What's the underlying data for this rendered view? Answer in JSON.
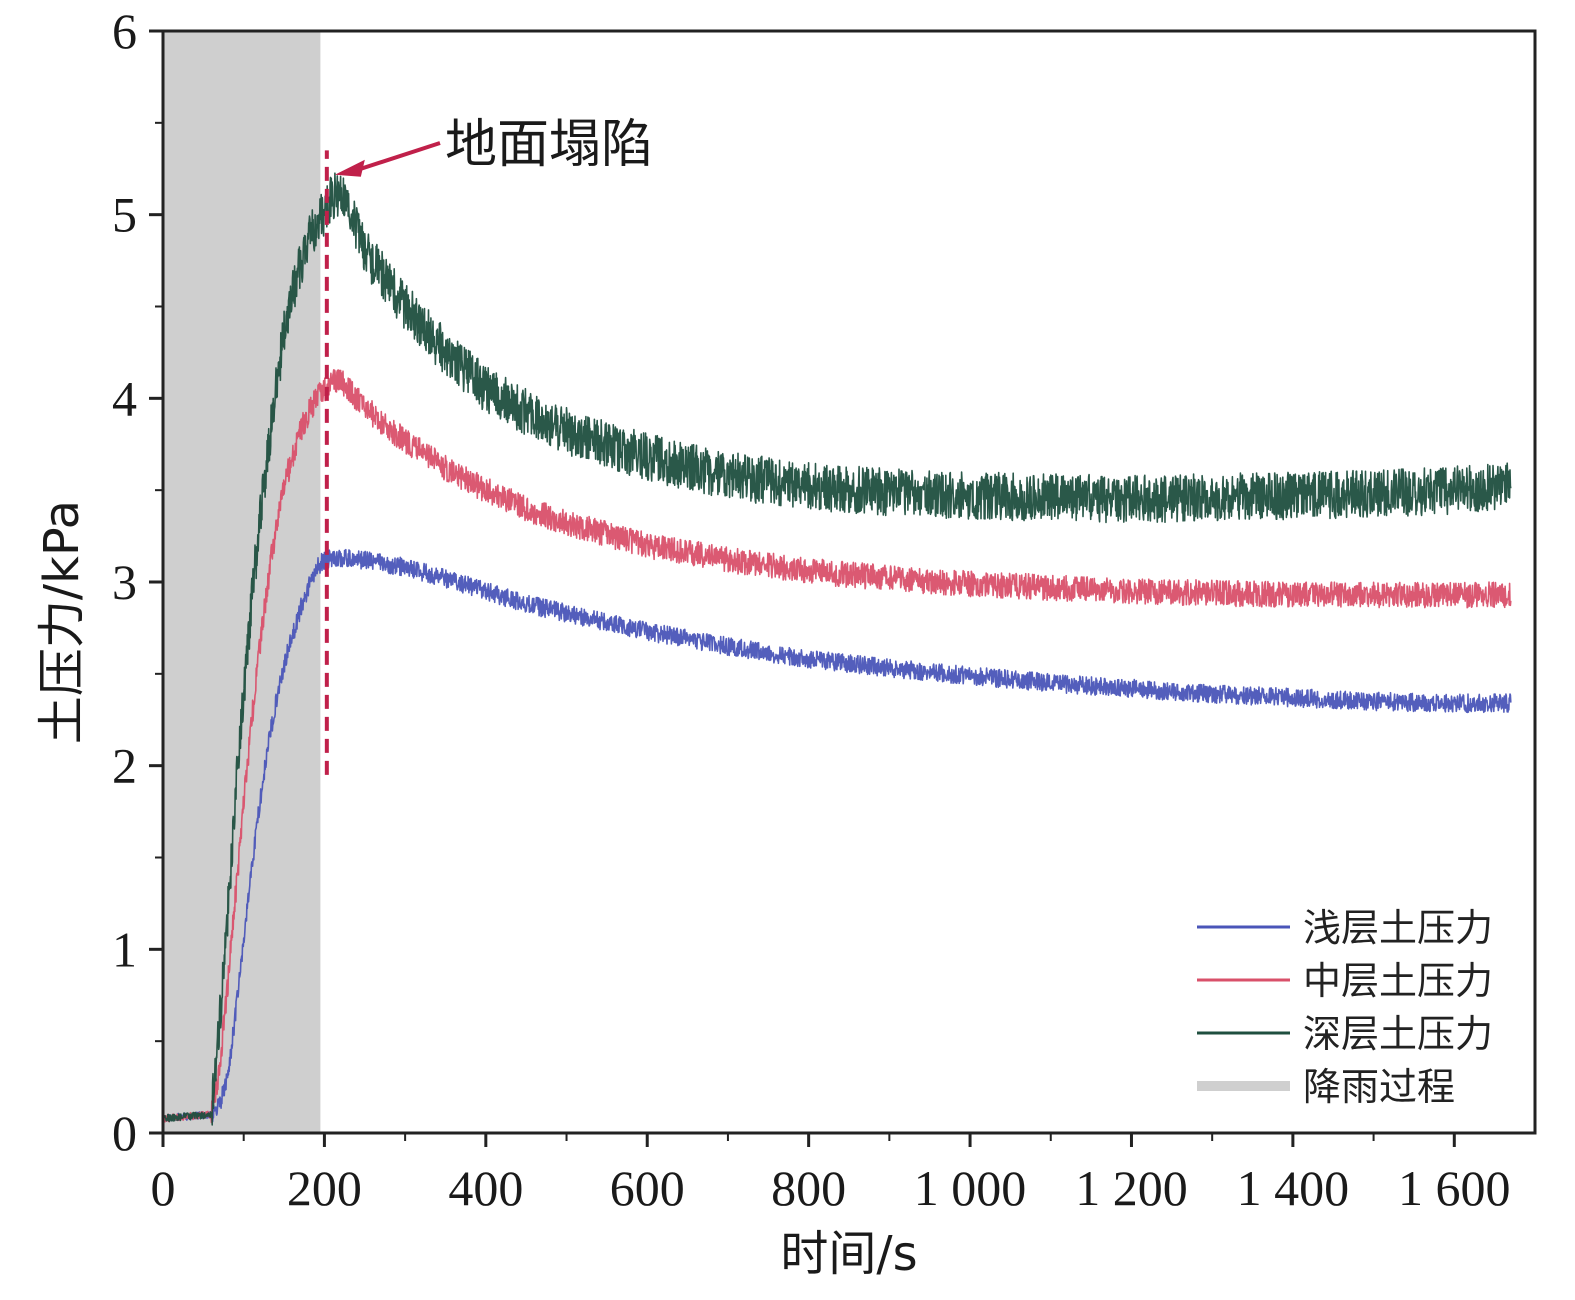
{
  "chart_data": {
    "type": "line",
    "xlabel": "时间/s",
    "ylabel": "土压力/kPa",
    "xlim": [
      0,
      1700
    ],
    "ylim": [
      0,
      6
    ],
    "x_ticks": [
      0,
      200,
      400,
      600,
      800,
      1000,
      1200,
      1400,
      1600
    ],
    "x_tick_labels": [
      "0",
      "200",
      "400",
      "600",
      "800",
      "1 000",
      "1 200",
      "1 400",
      "1 600"
    ],
    "y_ticks": [
      0,
      1,
      2,
      3,
      4,
      5,
      6
    ],
    "y_tick_labels": [
      "0",
      "1",
      "2",
      "3",
      "4",
      "5",
      "6"
    ],
    "grid": false,
    "legend_position": "bottom-right",
    "rain_period": {
      "name": "降雨过程",
      "x_start": 0,
      "x_end": 195,
      "color": "#cfcfcf"
    },
    "collapse_marker": {
      "label": "地面塌陷",
      "x": 203,
      "y_from": 1.95,
      "y_to": 5.35,
      "arrow_target_y": 5.25,
      "color": "#c0204a"
    },
    "series": [
      {
        "name": "浅层土压力",
        "color": "#4a55b8",
        "noise": 0.05,
        "x": [
          0,
          60,
          70,
          80,
          90,
          100,
          110,
          120,
          130,
          140,
          150,
          160,
          170,
          180,
          190,
          195,
          200,
          220,
          250,
          300,
          350,
          400,
          450,
          500,
          600,
          700,
          800,
          900,
          1000,
          1100,
          1200,
          1300,
          1400,
          1500,
          1600,
          1670
        ],
        "values": [
          0.08,
          0.1,
          0.15,
          0.3,
          0.65,
          1.05,
          1.45,
          1.8,
          2.1,
          2.35,
          2.55,
          2.7,
          2.85,
          2.97,
          3.07,
          3.1,
          3.12,
          3.13,
          3.12,
          3.08,
          3.02,
          2.95,
          2.88,
          2.83,
          2.73,
          2.65,
          2.58,
          2.53,
          2.49,
          2.45,
          2.42,
          2.39,
          2.37,
          2.35,
          2.34,
          2.34
        ]
      },
      {
        "name": "中层土压力",
        "color": "#d9506a",
        "noise": 0.07,
        "x": [
          0,
          60,
          70,
          80,
          90,
          100,
          110,
          120,
          130,
          140,
          150,
          160,
          170,
          180,
          190,
          200,
          210,
          220,
          240,
          270,
          300,
          350,
          400,
          450,
          500,
          600,
          700,
          800,
          900,
          1000,
          1100,
          1200,
          1300,
          1400,
          1500,
          1600,
          1670
        ],
        "values": [
          0.08,
          0.1,
          0.35,
          0.8,
          1.3,
          1.8,
          2.25,
          2.65,
          3.0,
          3.3,
          3.52,
          3.68,
          3.82,
          3.92,
          4.0,
          4.05,
          4.09,
          4.1,
          4.0,
          3.87,
          3.77,
          3.62,
          3.5,
          3.4,
          3.32,
          3.2,
          3.12,
          3.06,
          3.02,
          2.99,
          2.97,
          2.95,
          2.94,
          2.93,
          2.93,
          2.93,
          2.93
        ]
      },
      {
        "name": "深层土压力",
        "color": "#1f4f3f",
        "noise": 0.13,
        "x": [
          0,
          60,
          70,
          80,
          90,
          100,
          110,
          120,
          130,
          140,
          150,
          160,
          170,
          180,
          190,
          200,
          210,
          220,
          230,
          250,
          280,
          300,
          350,
          400,
          450,
          500,
          600,
          700,
          800,
          900,
          1000,
          1100,
          1200,
          1300,
          1400,
          1500,
          1600,
          1670
        ],
        "values": [
          0.08,
          0.1,
          0.6,
          1.2,
          1.85,
          2.4,
          2.9,
          3.35,
          3.7,
          4.05,
          4.35,
          4.55,
          4.72,
          4.85,
          4.95,
          5.02,
          5.1,
          5.12,
          5.02,
          4.8,
          4.62,
          4.5,
          4.25,
          4.05,
          3.92,
          3.82,
          3.68,
          3.58,
          3.52,
          3.49,
          3.47,
          3.46,
          3.45,
          3.46,
          3.47,
          3.48,
          3.5,
          3.52
        ]
      }
    ]
  }
}
